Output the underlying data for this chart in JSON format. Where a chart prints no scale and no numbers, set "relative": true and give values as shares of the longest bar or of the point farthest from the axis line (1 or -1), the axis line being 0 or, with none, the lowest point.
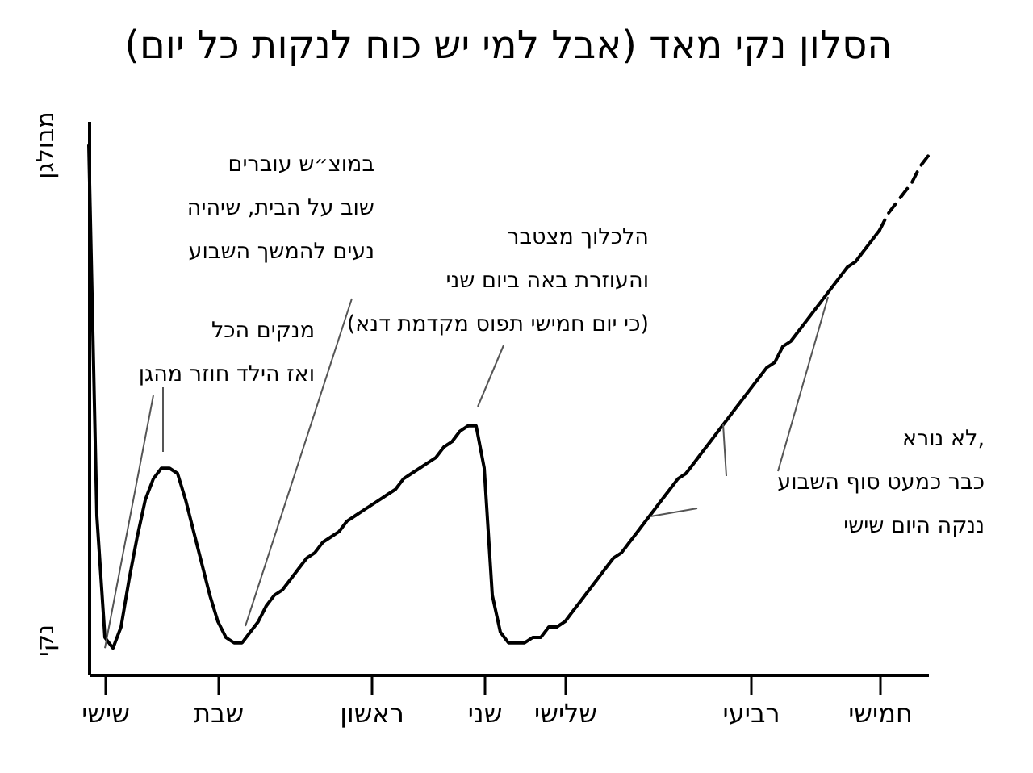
{
  "chart_data": {
    "type": "line",
    "title": "הסלון נקי מאד (אבל למי יש כוח לנקות כל יום)",
    "relative": true,
    "categories": [
      null,
      null,
      "שישי",
      null,
      null,
      null,
      null,
      null,
      null,
      null,
      null,
      null,
      null,
      null,
      null,
      null,
      "שבת",
      null,
      null,
      null,
      null,
      null,
      null,
      null,
      null,
      null,
      null,
      null,
      null,
      null,
      null,
      null,
      null,
      null,
      null,
      "ראשון",
      null,
      null,
      null,
      null,
      null,
      null,
      null,
      null,
      null,
      null,
      null,
      null,
      null,
      "שני",
      null,
      null,
      null,
      null,
      null,
      null,
      null,
      null,
      null,
      "שלישי",
      null,
      null,
      null,
      null,
      null,
      null,
      null,
      null,
      null,
      null,
      null,
      null,
      null,
      null,
      null,
      null,
      null,
      null,
      null,
      null,
      null,
      null,
      "רביעי",
      null,
      null,
      null,
      null,
      null,
      null,
      null,
      null,
      null,
      null,
      null,
      null,
      null,
      null,
      null,
      "חמישי",
      null,
      null,
      null,
      null,
      null,
      null
    ],
    "series": [
      {
        "color": "#000000",
        "line_style": "solid",
        "values": [
          1.0,
          0.3,
          0.07,
          0.05,
          0.09,
          0.18,
          0.26,
          0.33,
          0.37,
          0.39,
          0.39,
          0.38,
          0.33,
          0.27,
          0.21,
          0.15,
          0.1,
          0.07,
          0.06,
          0.06,
          0.08,
          0.1,
          0.13,
          0.15,
          0.16,
          0.18,
          0.2,
          0.22,
          0.23,
          0.25,
          0.26,
          0.27,
          0.29,
          0.3,
          0.31,
          0.32,
          0.33,
          0.34,
          0.35,
          0.37,
          0.38,
          0.39,
          0.4,
          0.41,
          0.43,
          0.44,
          0.46,
          0.47,
          0.47,
          0.39,
          0.15,
          0.08,
          0.06,
          0.06,
          0.06,
          0.07,
          0.07,
          0.09,
          0.09,
          0.1,
          0.12,
          0.14,
          0.16,
          0.18,
          0.2,
          0.22,
          0.23,
          0.25,
          0.27,
          0.29,
          0.31,
          0.33,
          0.35,
          0.37,
          0.38,
          0.4,
          0.42,
          0.44,
          0.46,
          0.48,
          0.5,
          0.52,
          0.54,
          0.56,
          0.58,
          0.59,
          0.62,
          0.63,
          0.65,
          0.67,
          0.69,
          0.71,
          0.73,
          0.75,
          0.77,
          0.78,
          0.8,
          0.82,
          0.84,
          null,
          null,
          null,
          null,
          null,
          null
        ]
      },
      {
        "color": "#000000",
        "line_style": "dashed",
        "values": [
          null,
          null,
          null,
          null,
          null,
          null,
          null,
          null,
          null,
          null,
          null,
          null,
          null,
          null,
          null,
          null,
          null,
          null,
          null,
          null,
          null,
          null,
          null,
          null,
          null,
          null,
          null,
          null,
          null,
          null,
          null,
          null,
          null,
          null,
          null,
          null,
          null,
          null,
          null,
          null,
          null,
          null,
          null,
          null,
          null,
          null,
          null,
          null,
          null,
          null,
          null,
          null,
          null,
          null,
          null,
          null,
          null,
          null,
          null,
          null,
          null,
          null,
          null,
          null,
          null,
          null,
          null,
          null,
          null,
          null,
          null,
          null,
          null,
          null,
          null,
          null,
          null,
          null,
          null,
          null,
          null,
          null,
          null,
          null,
          null,
          null,
          null,
          null,
          null,
          null,
          null,
          null,
          null,
          null,
          null,
          null,
          null,
          null,
          0.84,
          0.87,
          0.89,
          0.91,
          0.93,
          0.96,
          0.98
        ]
      }
    ],
    "annotations": [
      "מבולגן",
      "נקי",
      "במוצ״ש עוברים\nשוב על הבית, שיהיה\nנעים להמשך השבוע",
      {
        "text": "מנקים הכל\nואז הילד חוזר מהגן",
        "x": "שישי",
        "y": 0.05
      },
      "הלכלוך מצטבר\nוהעוזרת באה ביום שני\n(כי יום חמישי תפוס מקדמת דנא)",
      "לא נורא,\nכבר כמעט סוף השבוע\nננקה היום שישי"
    ]
  }
}
